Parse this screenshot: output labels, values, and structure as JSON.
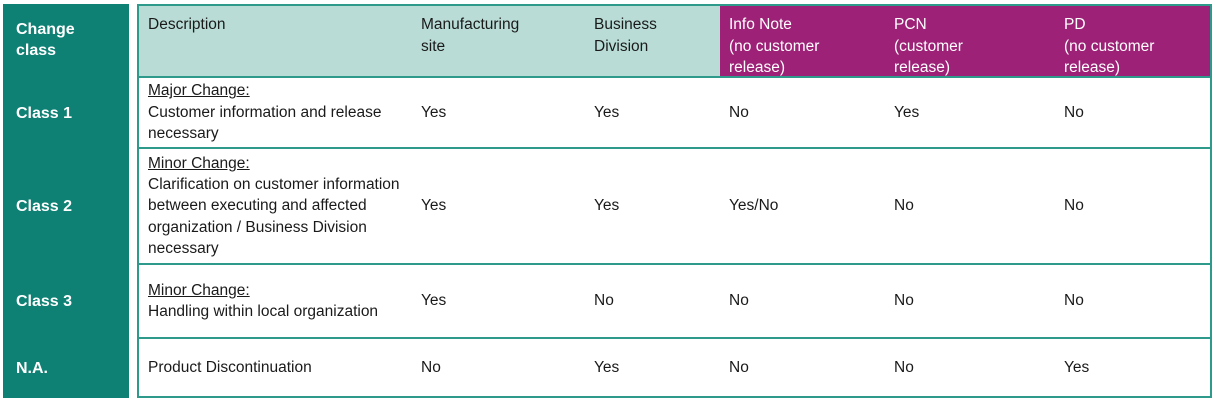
{
  "table": {
    "corner_header": "Change class",
    "colors": {
      "dark_teal": "#0E8174",
      "light_teal": "#B9DDD6",
      "magenta": "#9D2277",
      "border_teal": "#2E9A8C",
      "text": "#1A1A1A"
    },
    "columns": [
      {
        "lines": [
          "Description"
        ]
      },
      {
        "lines": [
          "Manufacturing",
          "site"
        ]
      },
      {
        "lines": [
          "Business",
          "Division"
        ]
      },
      {
        "lines": [
          "Info Note",
          "(no customer",
          "release)"
        ]
      },
      {
        "lines": [
          "PCN",
          "(customer",
          "release)"
        ]
      },
      {
        "lines": [
          "PD",
          "(no customer",
          "release)"
        ]
      }
    ],
    "rows": [
      {
        "class_label": "Class 1",
        "desc_title": "Major Change:",
        "desc_body": "Customer information and release necessary",
        "values": [
          "Yes",
          "Yes",
          "No",
          "Yes",
          "No"
        ]
      },
      {
        "class_label": "Class 2",
        "desc_title": "Minor Change:",
        "desc_body": "Clarification on customer information between executing and affected organization / Business Division necessary",
        "values": [
          "Yes",
          "Yes",
          "Yes/No",
          "No",
          "No"
        ]
      },
      {
        "class_label": "Class 3",
        "desc_title": "Minor Change:",
        "desc_body": "Handling within local organization",
        "values": [
          "Yes",
          "No",
          "No",
          "No",
          "No"
        ]
      },
      {
        "class_label": "N.A.",
        "desc_title": "",
        "desc_body": "Product Discontinuation",
        "values": [
          "No",
          "Yes",
          "No",
          "No",
          "Yes"
        ]
      }
    ]
  }
}
